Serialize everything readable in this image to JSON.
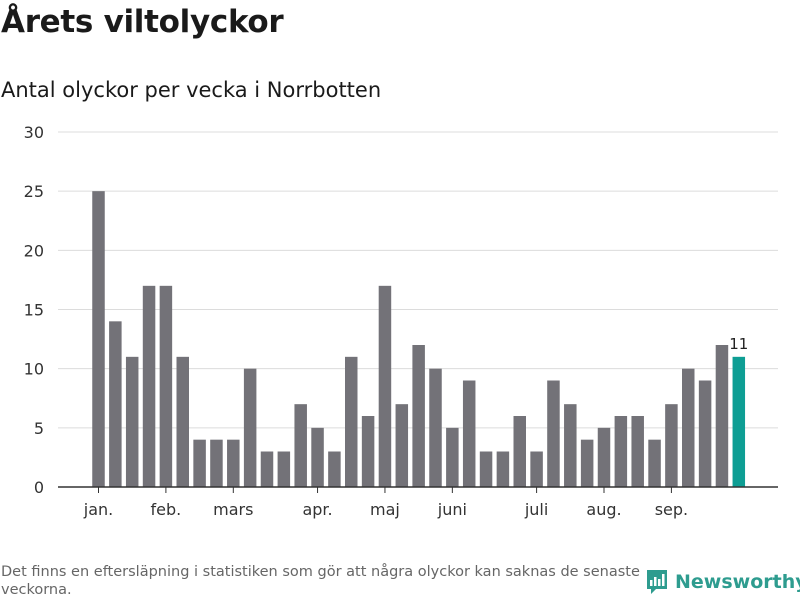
{
  "header": {
    "title": "Årets viltolyckor",
    "subtitle": "Antal olyckor per vecka i Norrbotten"
  },
  "footnote": "Det finns en eftersläpning i statistiken som gör att några olyckor kan saknas de senaste veckorna.",
  "brand": {
    "name": "Newsworthy",
    "icon": "newsworthy-logo-icon"
  },
  "colors": {
    "bar": "#737278",
    "highlight": "#0e9e94",
    "grid": "#dcdcdc",
    "axis": "#333333",
    "brand": "#2e9c8f"
  },
  "chart_data": {
    "type": "bar",
    "title": "Antal olyckor per vecka i Norrbotten",
    "xlabel": "",
    "ylabel": "",
    "ylim": [
      0,
      30
    ],
    "yticks": [
      0,
      5,
      10,
      15,
      20,
      25,
      30
    ],
    "grid": true,
    "values": [
      25,
      14,
      11,
      17,
      17,
      11,
      4,
      4,
      4,
      10,
      3,
      3,
      7,
      5,
      3,
      11,
      6,
      17,
      7,
      12,
      10,
      5,
      9,
      3,
      3,
      6,
      3,
      9,
      7,
      4,
      5,
      6,
      6,
      4,
      7,
      10,
      9,
      12,
      11
    ],
    "highlight_index": 38,
    "highlight_label": "11",
    "month_labels": [
      {
        "label": "jan.",
        "position": 0
      },
      {
        "label": "feb.",
        "position": 4
      },
      {
        "label": "mars",
        "position": 8
      },
      {
        "label": "apr.",
        "position": 13
      },
      {
        "label": "maj",
        "position": 17
      },
      {
        "label": "juni",
        "position": 21
      },
      {
        "label": "juli",
        "position": 26
      },
      {
        "label": "aug.",
        "position": 30
      },
      {
        "label": "sep.",
        "position": 34
      }
    ]
  }
}
